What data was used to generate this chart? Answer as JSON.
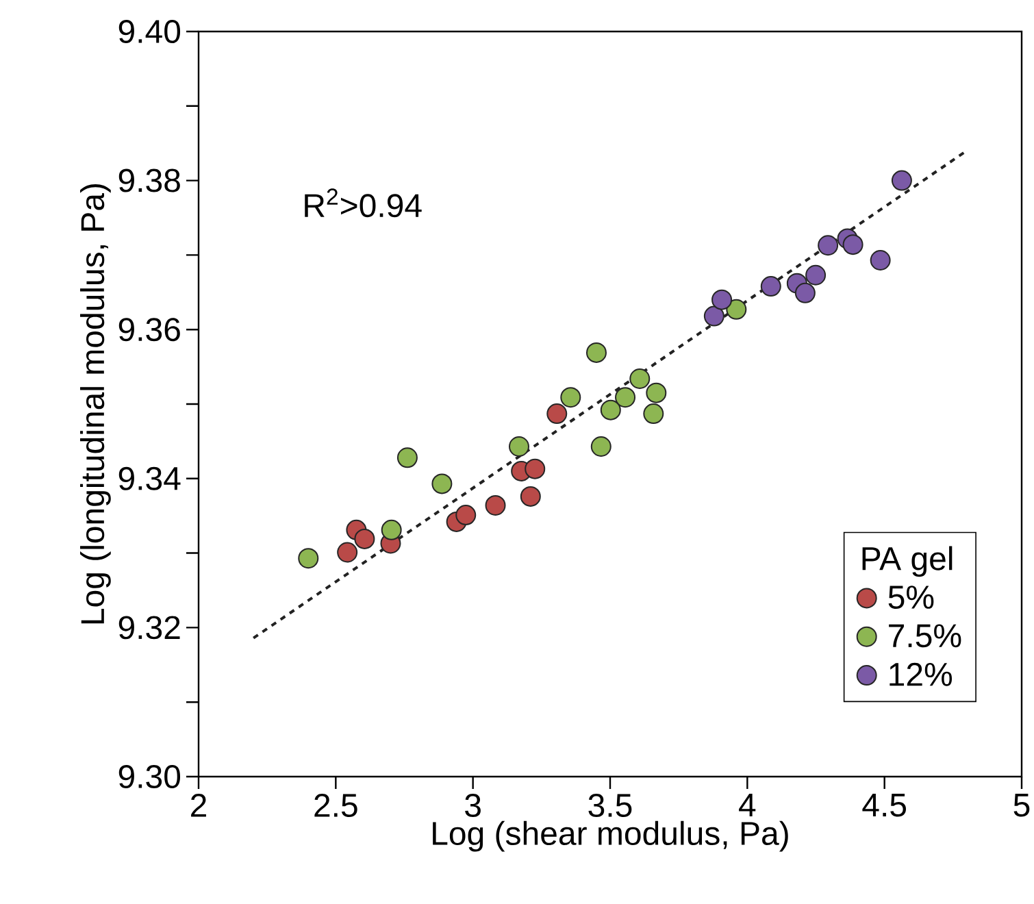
{
  "chart_data": {
    "type": "scatter",
    "xlabel": "Log (shear modulus, Pa)",
    "ylabel": "Log (longitudinal modulus, Pa)",
    "legend_title": "PA gel",
    "xlim": [
      2,
      5
    ],
    "ylim": [
      9.3,
      9.4
    ],
    "xticks": [
      2,
      2.5,
      3,
      3.5,
      4,
      4.5,
      5
    ],
    "yticks": [
      {
        "value": 9.3,
        "label": "9.30"
      },
      {
        "value": 9.31,
        "label": null
      },
      {
        "value": 9.32,
        "label": "9.32"
      },
      {
        "value": 9.33,
        "label": null
      },
      {
        "value": 9.34,
        "label": "9.34"
      },
      {
        "value": 9.35,
        "label": null
      },
      {
        "value": 9.36,
        "label": "9.36"
      },
      {
        "value": 9.37,
        "label": null
      },
      {
        "value": 9.38,
        "label": "9.38"
      },
      {
        "value": 9.39,
        "label": null
      },
      {
        "value": 9.4,
        "label": "9.40"
      }
    ],
    "legend": "bottom right",
    "grid": false,
    "annotations": [
      "R$^{2}$>0.94"
    ],
    "series": [
      {
        "name": "5%",
        "marker": "circle",
        "color": "#b94a48",
        "x": [
          2.575,
          2.605,
          2.542,
          2.7,
          2.94,
          2.974,
          3.082,
          3.21,
          3.176,
          3.226,
          3.306
        ],
        "values": [
          9.3331,
          9.3319,
          9.3301,
          9.3313,
          9.3342,
          9.3351,
          9.3364,
          9.3376,
          9.341,
          9.3413,
          9.3487
        ]
      },
      {
        "name": "7.5%",
        "marker": "circle",
        "color": "#8db652",
        "x": [
          2.4,
          2.703,
          2.761,
          2.887,
          3.168,
          3.356,
          3.45,
          3.467,
          3.502,
          3.555,
          3.608,
          3.668,
          3.658,
          3.96
        ],
        "values": [
          9.3293,
          9.3331,
          9.3428,
          9.3393,
          9.3443,
          9.3509,
          9.3569,
          9.3443,
          9.3492,
          9.3509,
          9.3534,
          9.3515,
          9.3487,
          9.3627
        ]
      },
      {
        "name": "12%",
        "marker": "circle",
        "color": "#7b5aa6",
        "x": [
          3.879,
          3.907,
          4.086,
          4.181,
          4.211,
          4.249,
          4.294,
          4.365,
          4.385,
          4.485,
          4.563
        ],
        "values": [
          9.3618,
          9.364,
          9.3658,
          9.3662,
          9.3649,
          9.3673,
          9.3713,
          9.3722,
          9.3714,
          9.3693,
          9.38
        ]
      },
      {
        "type": "line",
        "color": "#222222",
        "line_style": "dotted",
        "marker": "none",
        "x": [
          2.2,
          4.8
        ],
        "values": [
          9.3186,
          9.384
        ]
      }
    ]
  }
}
